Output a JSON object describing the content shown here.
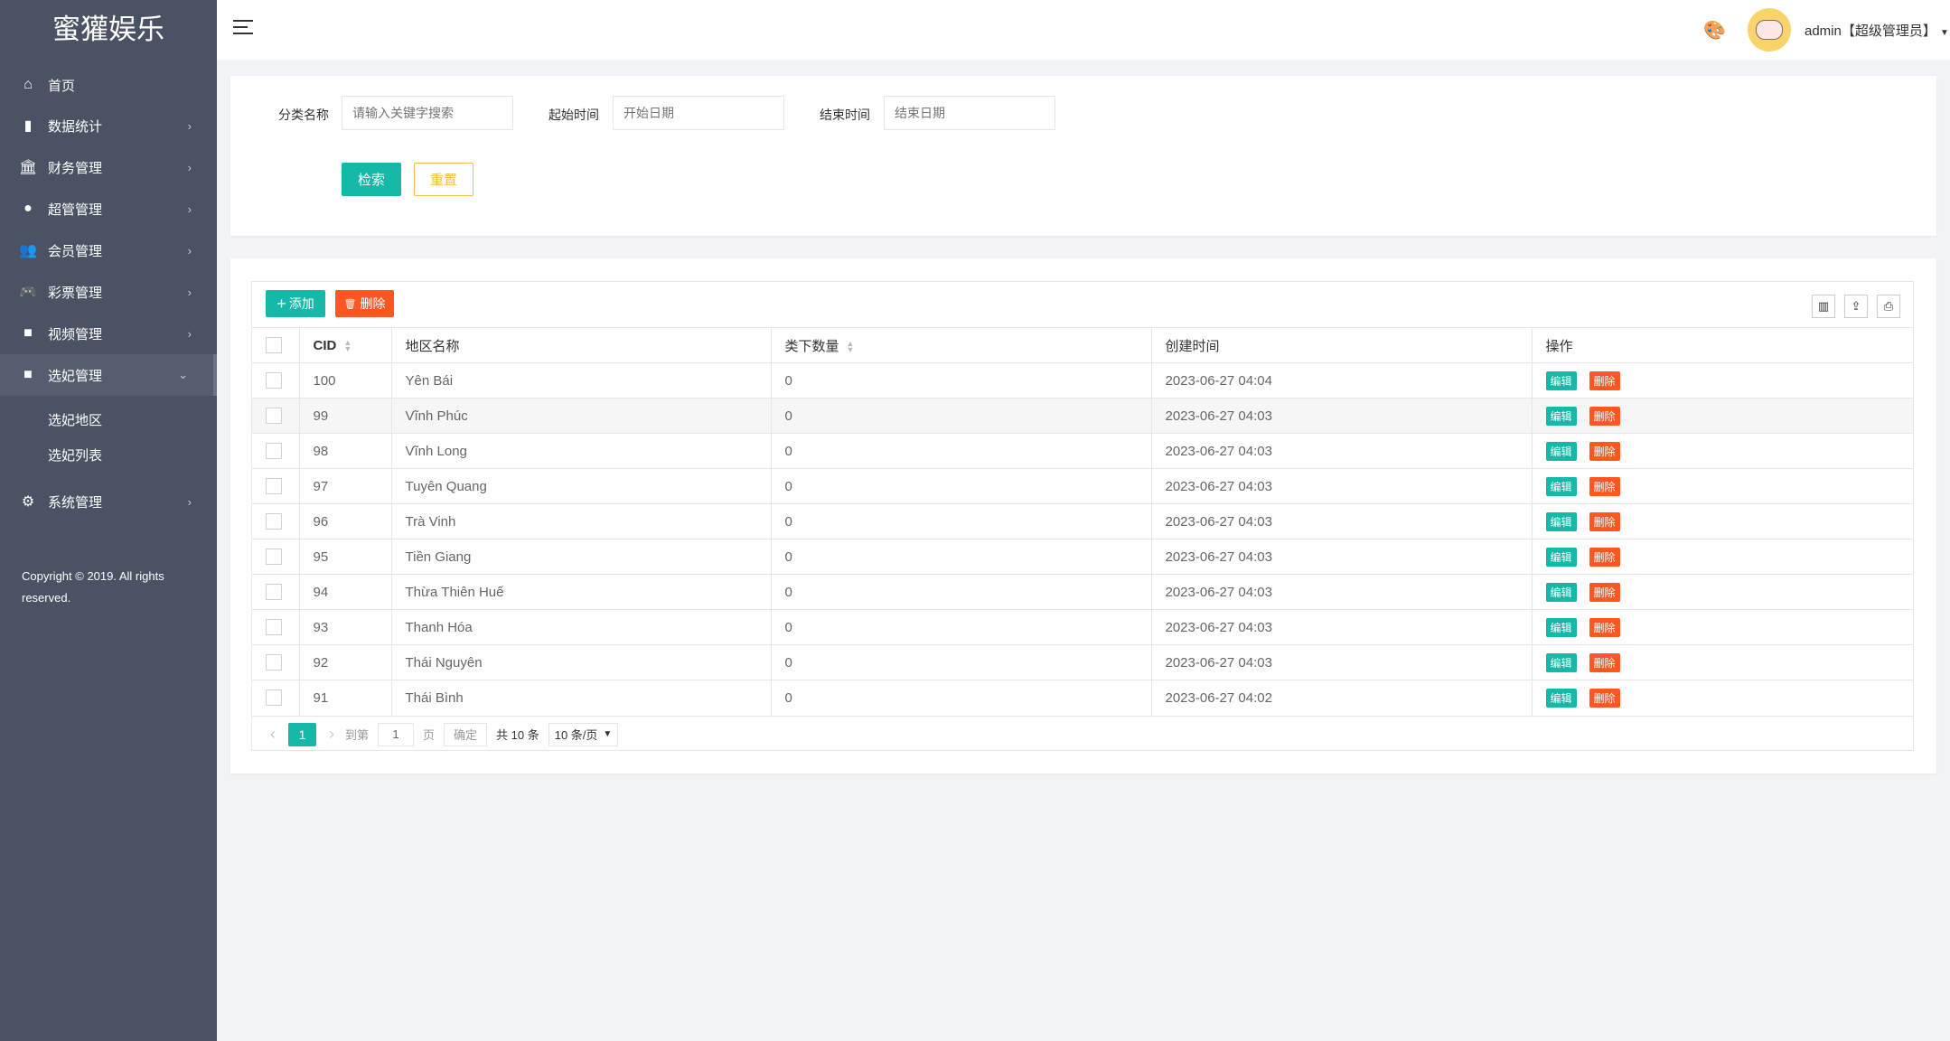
{
  "app": {
    "logo": "蜜獾娱乐"
  },
  "colors": {
    "sidebar": "#4a5263",
    "primary": "#16b8a8",
    "danger": "#ff5722",
    "warm": "#f1c04a"
  },
  "sidebar": {
    "items": [
      {
        "label": "首页",
        "icon": "home-icon",
        "glyph": "⌂",
        "arrow": ""
      },
      {
        "label": "数据统计",
        "icon": "bar-chart-icon",
        "glyph": "▮",
        "arrow": "›"
      },
      {
        "label": "财务管理",
        "icon": "bank-icon",
        "glyph": "🏛",
        "arrow": "›"
      },
      {
        "label": "超管管理",
        "icon": "user-icon",
        "glyph": "●",
        "arrow": "›"
      },
      {
        "label": "会员管理",
        "icon": "users-icon",
        "glyph": "👥",
        "arrow": "›"
      },
      {
        "label": "彩票管理",
        "icon": "gamepad-icon",
        "glyph": "🎮",
        "arrow": "›"
      },
      {
        "label": "视频管理",
        "icon": "video-icon",
        "glyph": "■",
        "arrow": "›"
      },
      {
        "label": "选妃管理",
        "icon": "video-icon",
        "glyph": "■",
        "arrow": "⌄"
      },
      {
        "label": "系统管理",
        "icon": "gear-icon",
        "glyph": "⚙",
        "arrow": "›"
      }
    ],
    "sub_items": [
      {
        "label": "选妃地区"
      },
      {
        "label": "选妃列表"
      }
    ],
    "copyright": "Copyright © 2019. All rights reserved."
  },
  "header": {
    "user": "admin【超级管理员】"
  },
  "search": {
    "category_label": "分类名称",
    "category_placeholder": "请输入关键字搜索",
    "start_label": "起始时间",
    "start_placeholder": "开始日期",
    "end_label": "结束时间",
    "end_placeholder": "结束日期",
    "search_button": "检索",
    "reset_button": "重置"
  },
  "table": {
    "add_button": "添加",
    "delete_button": "删除",
    "columns": [
      "CID",
      "地区名称",
      "类下数量",
      "创建时间",
      "操作"
    ],
    "edit_label": "编辑",
    "row_delete_label": "删除",
    "rows": [
      {
        "cid": "100",
        "name": "Yên Bái",
        "count": "0",
        "created": "2023-06-27 04:04"
      },
      {
        "cid": "99",
        "name": "Vĩnh Phúc",
        "count": "0",
        "created": "2023-06-27 04:03"
      },
      {
        "cid": "98",
        "name": "Vĩnh Long",
        "count": "0",
        "created": "2023-06-27 04:03"
      },
      {
        "cid": "97",
        "name": "Tuyên Quang",
        "count": "0",
        "created": "2023-06-27 04:03"
      },
      {
        "cid": "96",
        "name": "Trà Vinh",
        "count": "0",
        "created": "2023-06-27 04:03"
      },
      {
        "cid": "95",
        "name": "Tiền Giang",
        "count": "0",
        "created": "2023-06-27 04:03"
      },
      {
        "cid": "94",
        "name": "Thừa Thiên Huế",
        "count": "0",
        "created": "2023-06-27 04:03"
      },
      {
        "cid": "93",
        "name": "Thanh Hóa",
        "count": "0",
        "created": "2023-06-27 04:03"
      },
      {
        "cid": "92",
        "name": "Thái Nguyên",
        "count": "0",
        "created": "2023-06-27 04:03"
      },
      {
        "cid": "91",
        "name": "Thái Bình",
        "count": "0",
        "created": "2023-06-27 04:02"
      }
    ]
  },
  "pagination": {
    "current": "1",
    "goto_label": "到第",
    "goto_value": "1",
    "page_unit": "页",
    "confirm": "确定",
    "total": "共 10 条",
    "page_size": "10 条/页"
  }
}
